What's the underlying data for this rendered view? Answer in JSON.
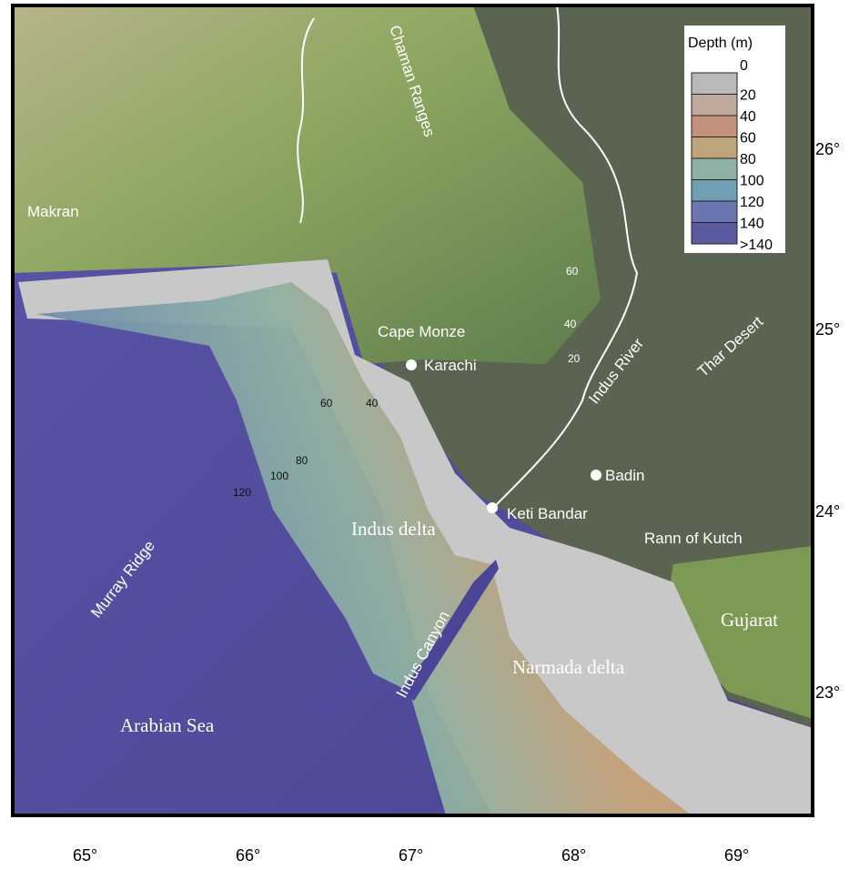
{
  "legend": {
    "title": "Depth (m)",
    "levels": [
      "0",
      "20",
      "40",
      "60",
      "80",
      "100",
      "120",
      "140",
      ">140"
    ],
    "colors": [
      "#b9b9b9",
      "#bfa99c",
      "#c2917c",
      "#c0a47e",
      "#8fb1a3",
      "#6e9fb3",
      "#6a76b0",
      "#5c5ba0"
    ]
  },
  "axes": {
    "longitude_ticks": [
      "65°",
      "66°",
      "67°",
      "68°",
      "69°"
    ],
    "latitude_ticks": [
      "26°",
      "25°",
      "24°",
      "23°"
    ]
  },
  "places": {
    "makran": "Makran",
    "chaman": "Chaman Ranges",
    "cape_monze": "Cape Monze",
    "karachi": "Karachi",
    "indus_river": "Indus River",
    "thar": "Thar Desert",
    "badin": "Badin",
    "keti_bandar": "Keti Bandar",
    "rann": "Rann of Kutch",
    "gujarat": "Gujarat",
    "indus_delta": "Indus delta",
    "narmada_delta": "Narmada delta",
    "murray_ridge": "Murray Ridge",
    "indus_canyon": "Indus Canyon",
    "arabian_sea": "Arabian Sea"
  },
  "contour_labels": {
    "land_60": "60",
    "land_40": "40",
    "land_20": "20",
    "shelf_60": "60",
    "shelf_40": "40",
    "shelf_80": "80",
    "shelf_100": "100",
    "shelf_120": "120"
  },
  "colors": {
    "sea": "#5650a0",
    "west_land": "#9aa868",
    "east_land": "#5b6450",
    "shelf": "#c7c7c7",
    "river": "#ffffff"
  }
}
